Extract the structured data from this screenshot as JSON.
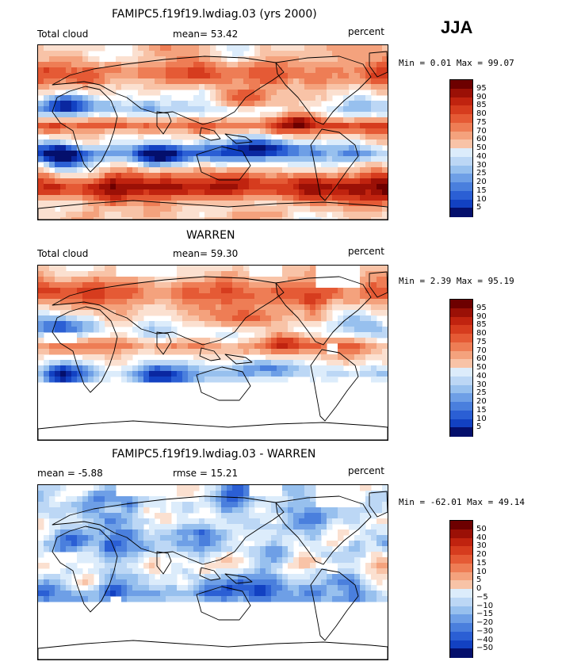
{
  "season": "JJA",
  "colors": {
    "warm": [
      "#fbe0d0",
      "#f8c3a7",
      "#f4a27d",
      "#ee7d55",
      "#e55a35",
      "#d63c1e",
      "#c0230f",
      "#9b1006",
      "#6d0000"
    ],
    "cool": [
      "#dcecfb",
      "#bcd7f5",
      "#97c0ee",
      "#6e9fe6",
      "#4a7fdd",
      "#2b5fd4",
      "#1241c2",
      "#0a27a0",
      "#040f6c"
    ],
    "neutral": "#ffffff",
    "coast": "#000000"
  },
  "panels": [
    {
      "title": "FAMIPC5.f19f19.lwdiag.03 (yrs 2000)",
      "left_label": "Total cloud",
      "mid_label": "mean=  53.42",
      "right_label": "percent",
      "minmax": "Min =   0.01 Max =  99.07",
      "ticks": [
        "95",
        "90",
        "85",
        "80",
        "75",
        "70",
        "60",
        "50",
        "40",
        "30",
        "25",
        "20",
        "15",
        "10",
        "5"
      ],
      "scheme": "full"
    },
    {
      "title": "WARREN",
      "left_label": "Total cloud",
      "mid_label": "mean=  59.30",
      "right_label": "percent",
      "minmax": "Min =   2.39 Max =  95.19",
      "ticks": [
        "95",
        "90",
        "85",
        "80",
        "75",
        "70",
        "60",
        "50",
        "40",
        "30",
        "25",
        "20",
        "15",
        "10",
        "5"
      ],
      "scheme": "obs"
    },
    {
      "title": "FAMIPC5.f19f19.lwdiag.03 - WARREN",
      "left_label": "mean =   -5.88",
      "mid_label": "rmse =   15.21",
      "right_label": "percent",
      "minmax": "Min = -62.01 Max =  49.14",
      "ticks": [
        "50",
        "40",
        "30",
        "20",
        "15",
        "10",
        "5",
        "0",
        "−5",
        "−10",
        "−15",
        "−20",
        "−30",
        "−40",
        "−50"
      ],
      "scheme": "diff"
    }
  ]
}
